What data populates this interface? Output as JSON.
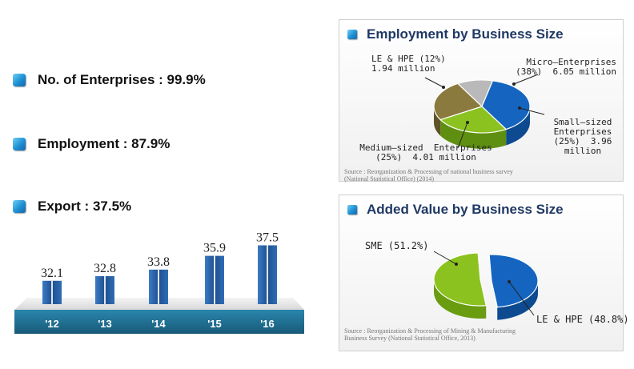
{
  "bullets": [
    {
      "label": "No. of Enterprises : 99.9%"
    },
    {
      "label": "Employment : 87.9%"
    },
    {
      "label": "Export : 37.5%"
    }
  ],
  "colors": {
    "accent_blue": "#1e8fd4",
    "bar_blue": "#2a5da0",
    "base_band": "#1f6f94",
    "title_navy": "#1f3864",
    "micro_blue": "#1565c0",
    "small_green": "#8bc220",
    "medium_olive": "#8a7a3e",
    "large_gray": "#b9b9b9"
  },
  "chart_data": [
    {
      "type": "bar",
      "title": "Export : 37.5%",
      "categories": [
        "'12",
        "'13",
        "'14",
        "'15",
        "'16"
      ],
      "values": [
        32.1,
        32.8,
        33.8,
        35.9,
        37.5
      ],
      "value_labels": [
        "32.1",
        "32.8",
        "33.8",
        "35.9",
        "37.5"
      ],
      "ylim": [
        30,
        38
      ]
    },
    {
      "type": "pie",
      "title": "Employment by Business Size",
      "slices": [
        {
          "name": "Micro–Enterprises",
          "percent": 38,
          "value_millions": 6.05,
          "label_line1": "Micro–Enterprises",
          "label_line2": "(38%)  6.05 million"
        },
        {
          "name": "Small–sized Enterprises",
          "percent": 25,
          "value_millions": 3.96,
          "label_line1": "Small–sized",
          "label_line2": "Enterprises",
          "label_line3": "(25%)  3.96",
          "label_line4": "million"
        },
        {
          "name": "Medium–sized Enterprises",
          "percent": 25,
          "value_millions": 4.01,
          "label_line1": "Medium–sized  Enterprises",
          "label_line2": "(25%)  4.01 million"
        },
        {
          "name": "LE & HPE",
          "percent": 12,
          "value_millions": 1.94,
          "label_line1": "LE & HPE (12%)",
          "label_line2": "1.94 million"
        }
      ],
      "source": "Source : Reorganization & Processing of national business survey (National Statistical Office) (2014)"
    },
    {
      "type": "pie",
      "title": "Added Value by Business Size",
      "slices": [
        {
          "name": "SME",
          "percent": 51.2,
          "label": "SME (51.2%)"
        },
        {
          "name": "LE & HPE",
          "percent": 48.8,
          "label": "LE & HPE (48.8%)"
        }
      ],
      "source": "Source : Reorganization & Processing of Mining & Manufacturing Business Survey (National Statistical Office, 2013)"
    }
  ]
}
